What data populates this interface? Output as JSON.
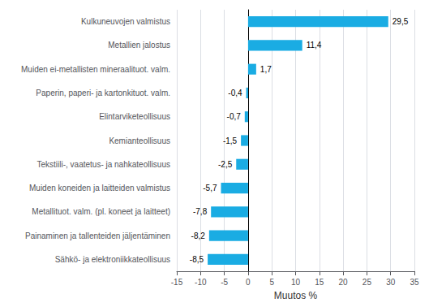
{
  "chart_data": {
    "type": "bar",
    "orientation": "horizontal",
    "xlabel": "Muutos %",
    "categories": [
      "Sähkö- ja elektroniikkateollisuus",
      "Painaminen ja tallenteiden jäljentäminen",
      "Metallituot. valm. (pl. koneet ja laitteet)",
      "Muiden koneiden ja laitteiden valmistus",
      "Tekstiili-, vaatetus- ja nahkateollisuus",
      "Kemianteollisuus",
      "Elintarviketeollisuus",
      "Paperin, paperi- ja kartonkituot. valm.",
      "Muiden ei-metallisten mineraalituot. valm.",
      "Metallien jalostus",
      "Kulkuneuvojen valmistus"
    ],
    "values": [
      -8.5,
      -8.2,
      -7.8,
      -5.7,
      -2.5,
      -1.5,
      -0.7,
      -0.4,
      1.7,
      11.4,
      29.5
    ],
    "value_labels": [
      "-8,5",
      "-8,2",
      "-7,8",
      "-5,7",
      "-2,5",
      "-1,5",
      "-0,7",
      "-0,4",
      "1,7",
      "11,4",
      "29,5"
    ],
    "data_labels": true,
    "color": "#1aace3",
    "xlim": [
      -15,
      35
    ],
    "xticks": [
      -15,
      -10,
      -5,
      0,
      5,
      10,
      15,
      20,
      25,
      30,
      35
    ],
    "grid": true
  }
}
